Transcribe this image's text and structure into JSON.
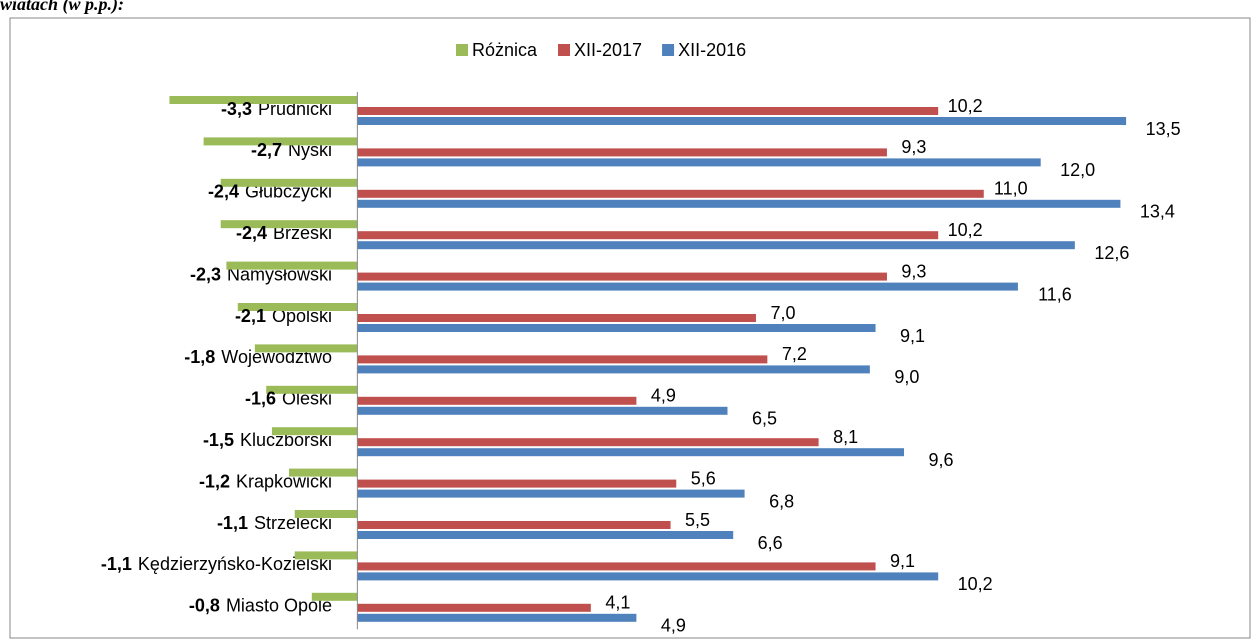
{
  "chart_data": {
    "type": "hbar",
    "caption": "wiatach (w p.p.):",
    "categories": [
      "Prudnicki",
      "Nyski",
      "Głubczycki",
      "Brzeski",
      "Namysłowski",
      "Opolski",
      "Województwo",
      "Oleski",
      "Kluczborski",
      "Krapkowicki",
      "Strzelecki",
      "Kędzierzyńsko-Kozielski",
      "Miasto Opole"
    ],
    "series": [
      {
        "name": "Różnica",
        "color": "#9bbb59",
        "values": [
          -3.3,
          -2.7,
          -2.4,
          -2.4,
          -2.3,
          -2.1,
          -1.8,
          -1.6,
          -1.5,
          -1.2,
          -1.1,
          -1.1,
          -0.8
        ],
        "value_labels": [
          "-3,3",
          "-2,7",
          "-2,4",
          "-2,4",
          "-2,3",
          "-2,1",
          "-1,8",
          "-1,6",
          "-1,5",
          "-1,2",
          "-1,1",
          "-1,1",
          "-0,8"
        ]
      },
      {
        "name": "XII-2017",
        "color": "#c0504d",
        "values": [
          10.2,
          9.3,
          11.0,
          10.2,
          9.3,
          7.0,
          7.2,
          4.9,
          8.1,
          5.6,
          5.5,
          9.1,
          4.1
        ],
        "value_labels": [
          "10,2",
          "9,3",
          "11,0",
          "10,2",
          "9,3",
          "7,0",
          "7,2",
          "4,9",
          "8,1",
          "5,6",
          "5,5",
          "9,1",
          "4,1"
        ]
      },
      {
        "name": "XII-2016",
        "color": "#4f81bd",
        "values": [
          13.5,
          12.0,
          13.4,
          12.6,
          11.6,
          9.1,
          9.0,
          6.5,
          9.6,
          6.8,
          6.6,
          10.2,
          4.9
        ],
        "value_labels": [
          "13,5",
          "12,0",
          "13,4",
          "12,6",
          "11,6",
          "9,1",
          "9,0",
          "6,5",
          "9,6",
          "6,8",
          "6,6",
          "10,2",
          "4,9"
        ]
      }
    ],
    "xlim": [
      -6.1,
      15.5
    ],
    "legend": "top"
  }
}
